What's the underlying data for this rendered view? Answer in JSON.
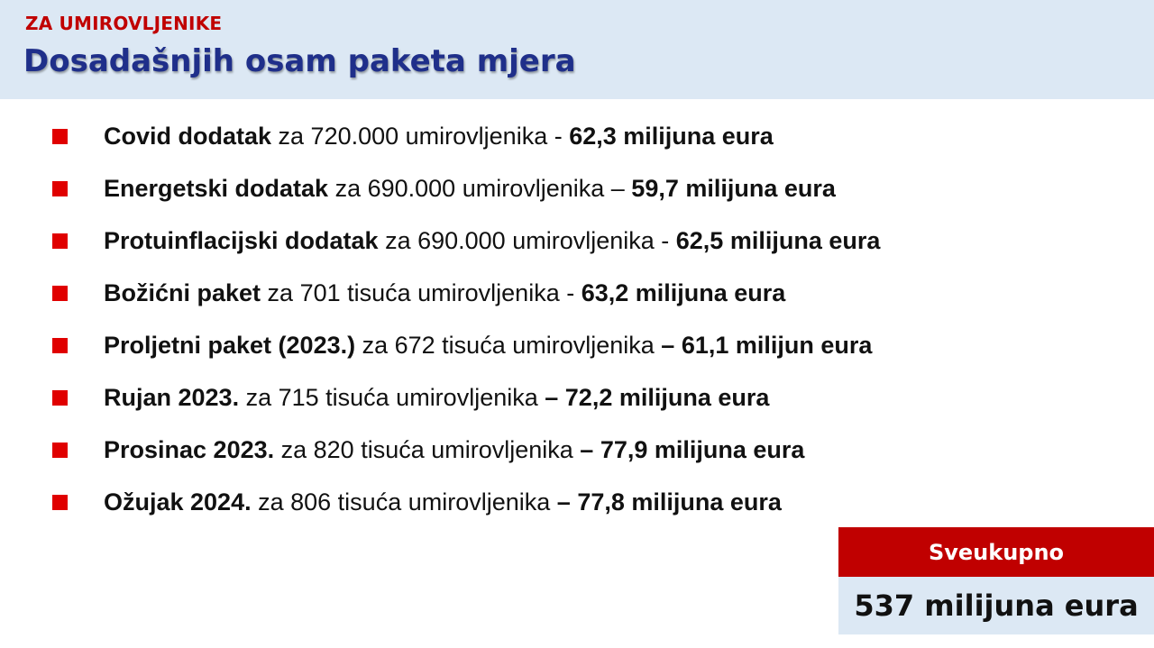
{
  "header": {
    "kicker": "ZA UMIROVLJENIKE",
    "title": "Dosadašnjih osam paketa mjera"
  },
  "items": [
    {
      "name": "Covid dodatak",
      "detail": " za 720.000 umirovljenika ",
      "sep": "- ",
      "amount": "62,3 milijuna eura"
    },
    {
      "name": "Energetski dodatak",
      "detail": " za 690.000 umirovljenika ",
      "sep": "– ",
      "amount": "59,7 milijuna eura"
    },
    {
      "name": "Protuinflacijski dodatak",
      "detail": " za 690.000 umirovljenika ",
      "sep": "- ",
      "amount": "62,5 milijuna eura"
    },
    {
      "name": "Božićni paket",
      "detail": " za 701 tisuća umirovljenika ",
      "sep": "- ",
      "amount": "63,2 milijuna eura"
    },
    {
      "name": "Proljetni paket (2023.)",
      "detail": " za 672 tisuća umirovljenika ",
      "sep": "– ",
      "amount": "61,1 milijun eura"
    },
    {
      "name": "Rujan 2023.",
      "detail": " za 715 tisuća umirovljenika ",
      "sep": "– ",
      "amount": "72,2 milijuna eura"
    },
    {
      "name": "Prosinac 2023.",
      "detail": " za 820 tisuća umirovljenika ",
      "sep": "– ",
      "amount": "77,9 milijuna eura"
    },
    {
      "name": "Ožujak 2024.",
      "detail": " za 806 tisuća umirovljenika ",
      "sep": "– ",
      "amount": "77,8 milijuna eura"
    }
  ],
  "total": {
    "label": "Sveukupno",
    "value": "537 milijuna eura"
  },
  "colors": {
    "accent_red": "#c00000",
    "bullet_red": "#e00000",
    "title_blue": "#1f2f8a",
    "panel_blue": "#dce8f4"
  }
}
